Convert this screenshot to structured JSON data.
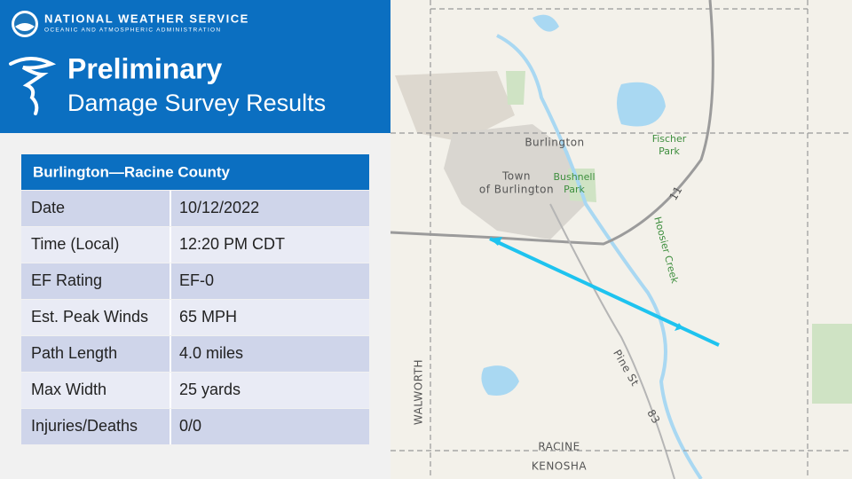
{
  "header": {
    "agency": "NATIONAL WEATHER SERVICE",
    "subagency": "OCEANIC AND ATMOSPHERIC ADMINISTRATION",
    "title_line1": "Preliminary",
    "title_line2": "Damage Survey Results"
  },
  "table": {
    "title": "Burlington—Racine County",
    "rows": [
      [
        "Date",
        "10/12/2022"
      ],
      [
        "Time (Local)",
        "12:20 PM CDT"
      ],
      [
        "EF Rating",
        "EF-0"
      ],
      [
        "Est. Peak Winds",
        "65 MPH"
      ],
      [
        "Path Length",
        "4.0 miles"
      ],
      [
        "Max Width",
        "25 yards"
      ],
      [
        "Injuries/Deaths",
        "0/0"
      ]
    ]
  },
  "map": {
    "labels": [
      "Burlington",
      "Fischer",
      "Park",
      "Town",
      "of Burlington",
      "Bushnell",
      "Park",
      "Hoosier Creek",
      "Pine St",
      "83",
      "11",
      "WALWORTH",
      "RACINE",
      "KENOSHA"
    ]
  }
}
